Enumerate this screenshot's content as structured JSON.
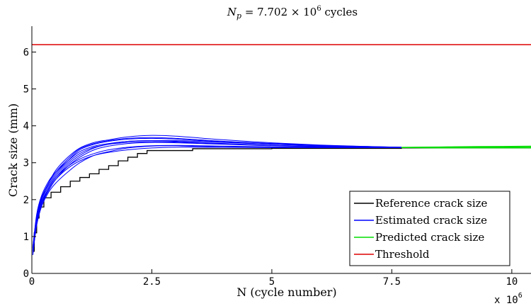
{
  "chart_data": {
    "type": "line",
    "title": "N_p = 7.702 × 10^6 cycles",
    "title_parts": {
      "lhs": "N",
      "sub": "p",
      "mid": " = 7.702 × 10",
      "exp": "6",
      "rhs": " cycles"
    },
    "xlabel": "N (cycle number)",
    "ylabel": "Crack size (mm)",
    "x_multiplier_label": "x 10",
    "x_multiplier_exp": "6",
    "xlim": [
      0,
      10.4
    ],
    "ylim": [
      0,
      6.7
    ],
    "x_ticks": [
      0,
      2.5,
      5,
      7.5,
      10
    ],
    "x_tick_labels": [
      "0",
      "2.5",
      "5",
      "7.5",
      "10"
    ],
    "y_ticks": [
      0,
      1,
      2,
      3,
      4,
      5,
      6
    ],
    "y_tick_labels": [
      "0",
      "1",
      "2",
      "3",
      "4",
      "5",
      "6"
    ],
    "grid": false,
    "legend_position": "bottom-right",
    "colors": {
      "reference": "#000000",
      "estimated": "#0000ff",
      "predicted": "#00dd00",
      "threshold": "#dd0000"
    },
    "series": [
      {
        "name": "Reference crack size",
        "color": "#000000",
        "style": "step",
        "points": [
          [
            0.02,
            0.6
          ],
          [
            0.05,
            1.1
          ],
          [
            0.1,
            1.5
          ],
          [
            0.15,
            1.8
          ],
          [
            0.25,
            2.05
          ],
          [
            0.4,
            2.2
          ],
          [
            0.6,
            2.35
          ],
          [
            0.8,
            2.5
          ],
          [
            1.0,
            2.6
          ],
          [
            1.2,
            2.7
          ],
          [
            1.4,
            2.82
          ],
          [
            1.6,
            2.92
          ],
          [
            1.8,
            3.05
          ],
          [
            2.0,
            3.15
          ],
          [
            2.2,
            3.25
          ],
          [
            2.4,
            3.33
          ],
          [
            3.3,
            3.33
          ],
          [
            3.35,
            3.38
          ],
          [
            5.0,
            3.39
          ],
          [
            7.7,
            3.4
          ],
          [
            10.4,
            3.4
          ]
        ]
      },
      {
        "name": "Estimated crack size",
        "color": "#0000ff",
        "style": "line",
        "x": [
          0.02,
          0.1,
          0.2,
          0.35,
          0.5,
          0.75,
          1.0,
          1.3,
          1.6,
          2.0,
          2.5,
          3.0,
          3.5,
          4.0,
          5.0,
          6.0,
          7.0,
          7.7
        ],
        "trajectories": [
          [
            0.5,
            1.4,
            1.9,
            2.3,
            2.6,
            2.95,
            3.2,
            3.4,
            3.5,
            3.58,
            3.6,
            3.58,
            3.55,
            3.52,
            3.47,
            3.44,
            3.42,
            3.41
          ],
          [
            0.6,
            1.5,
            2.0,
            2.45,
            2.8,
            3.15,
            3.4,
            3.55,
            3.62,
            3.7,
            3.74,
            3.72,
            3.67,
            3.62,
            3.54,
            3.48,
            3.44,
            3.42
          ],
          [
            0.55,
            1.3,
            1.8,
            2.2,
            2.45,
            2.75,
            3.0,
            3.2,
            3.3,
            3.4,
            3.45,
            3.46,
            3.44,
            3.43,
            3.42,
            3.41,
            3.41,
            3.41
          ],
          [
            0.7,
            1.6,
            2.1,
            2.5,
            2.75,
            3.05,
            3.3,
            3.45,
            3.52,
            3.58,
            3.6,
            3.6,
            3.58,
            3.55,
            3.5,
            3.46,
            3.43,
            3.42
          ],
          [
            0.5,
            1.35,
            1.85,
            2.25,
            2.55,
            2.9,
            3.15,
            3.35,
            3.45,
            3.52,
            3.55,
            3.54,
            3.52,
            3.5,
            3.46,
            3.43,
            3.42,
            3.41
          ],
          [
            0.65,
            1.55,
            2.05,
            2.4,
            2.7,
            3.05,
            3.35,
            3.5,
            3.58,
            3.64,
            3.66,
            3.64,
            3.6,
            3.56,
            3.5,
            3.46,
            3.43,
            3.42
          ],
          [
            0.6,
            1.45,
            1.95,
            2.3,
            2.6,
            2.9,
            3.1,
            3.25,
            3.35,
            3.42,
            3.46,
            3.47,
            3.46,
            3.45,
            3.43,
            3.42,
            3.41,
            3.41
          ],
          [
            0.55,
            1.5,
            2.0,
            2.35,
            2.65,
            3.0,
            3.25,
            3.42,
            3.5,
            3.55,
            3.57,
            3.56,
            3.54,
            3.51,
            3.47,
            3.44,
            3.42,
            3.41
          ],
          [
            0.6,
            1.4,
            1.9,
            2.25,
            2.55,
            2.85,
            3.05,
            3.2,
            3.28,
            3.35,
            3.4,
            3.42,
            3.42,
            3.42,
            3.41,
            3.41,
            3.41,
            3.41
          ],
          [
            0.7,
            1.55,
            2.05,
            2.45,
            2.75,
            3.1,
            3.38,
            3.52,
            3.6,
            3.66,
            3.68,
            3.66,
            3.62,
            3.58,
            3.52,
            3.47,
            3.44,
            3.42
          ]
        ]
      },
      {
        "name": "Predicted crack size",
        "color": "#00dd00",
        "style": "line",
        "x": [
          7.7,
          8.5,
          9.3,
          10.4
        ],
        "trajectories": [
          [
            3.41,
            3.42,
            3.43,
            3.44
          ],
          [
            3.41,
            3.41,
            3.42,
            3.42
          ],
          [
            3.41,
            3.41,
            3.41,
            3.41
          ],
          [
            3.41,
            3.4,
            3.4,
            3.4
          ],
          [
            3.42,
            3.43,
            3.44,
            3.45
          ]
        ]
      },
      {
        "name": "Threshold",
        "color": "#dd0000",
        "style": "hline",
        "y": 6.2
      }
    ]
  }
}
